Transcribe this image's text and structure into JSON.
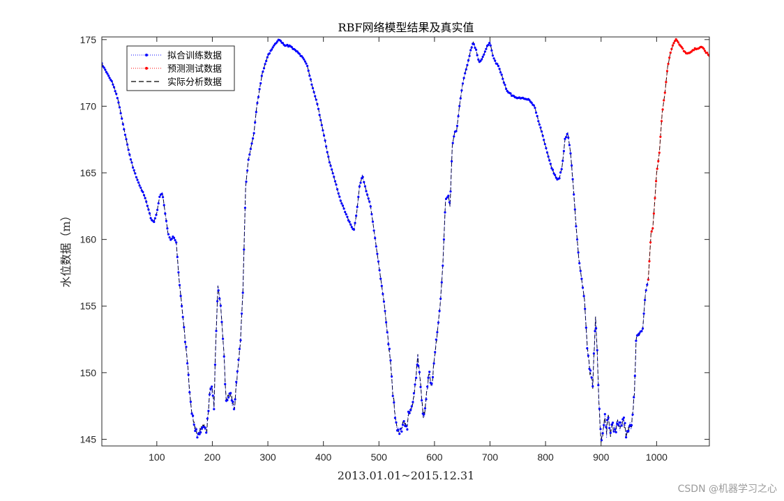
{
  "chart_data": {
    "type": "line",
    "title": "RBF网络模型结果及真实值",
    "xlabel": "2013.01.01~2015.12.31",
    "ylabel": "水位数据（m）",
    "xlim": [
      1,
      1095
    ],
    "ylim": [
      144.5,
      175.2
    ],
    "xticks": [
      100,
      200,
      300,
      400,
      500,
      600,
      700,
      800,
      900,
      1000
    ],
    "yticks": [
      145,
      150,
      155,
      160,
      165,
      170,
      175
    ],
    "grid": false,
    "legend_position": "top-left",
    "series": [
      {
        "name": "拟合训练数据",
        "color": "#0000ff",
        "style": "dotted-marker",
        "x_range": [
          1,
          985
        ]
      },
      {
        "name": "预测测试数据",
        "color": "#ff0000",
        "style": "dotted-marker",
        "x_range": [
          985,
          1095
        ]
      },
      {
        "name": "实际分析数据",
        "color": "#000000",
        "style": "dashed",
        "x_range": [
          1,
          1095
        ]
      }
    ],
    "keypoints": [
      [
        1,
        173.2
      ],
      [
        10,
        172.5
      ],
      [
        20,
        171.8
      ],
      [
        30,
        170.5
      ],
      [
        40,
        168.5
      ],
      [
        50,
        166.5
      ],
      [
        60,
        165.0
      ],
      [
        70,
        164.0
      ],
      [
        80,
        163.0
      ],
      [
        90,
        161.5
      ],
      [
        95,
        161.3
      ],
      [
        100,
        162.0
      ],
      [
        105,
        163.2
      ],
      [
        110,
        163.5
      ],
      [
        115,
        162.0
      ],
      [
        120,
        160.5
      ],
      [
        125,
        160.0
      ],
      [
        130,
        160.2
      ],
      [
        135,
        159.8
      ],
      [
        140,
        157.0
      ],
      [
        145,
        155.0
      ],
      [
        150,
        153.0
      ],
      [
        155,
        151.0
      ],
      [
        160,
        148.0
      ],
      [
        165,
        146.5
      ],
      [
        170,
        145.5
      ],
      [
        175,
        145.2
      ],
      [
        180,
        145.8
      ],
      [
        185,
        146.0
      ],
      [
        190,
        145.5
      ],
      [
        195,
        148.5
      ],
      [
        200,
        149.0
      ],
      [
        203,
        147.5
      ],
      [
        206,
        152.0
      ],
      [
        210,
        156.5
      ],
      [
        215,
        155.0
      ],
      [
        220,
        152.0
      ],
      [
        225,
        148.0
      ],
      [
        230,
        148.5
      ],
      [
        235,
        148.0
      ],
      [
        240,
        147.5
      ],
      [
        245,
        150.0
      ],
      [
        250,
        152.0
      ],
      [
        255,
        156.0
      ],
      [
        260,
        164.0
      ],
      [
        265,
        166.0
      ],
      [
        270,
        167.0
      ],
      [
        275,
        168.0
      ],
      [
        280,
        170.0
      ],
      [
        290,
        172.5
      ],
      [
        300,
        173.8
      ],
      [
        310,
        174.5
      ],
      [
        320,
        175.0
      ],
      [
        325,
        174.8
      ],
      [
        330,
        174.6
      ],
      [
        340,
        174.5
      ],
      [
        350,
        174.2
      ],
      [
        360,
        173.8
      ],
      [
        370,
        173.2
      ],
      [
        380,
        171.5
      ],
      [
        390,
        170.0
      ],
      [
        400,
        168.0
      ],
      [
        410,
        166.0
      ],
      [
        420,
        164.5
      ],
      [
        430,
        163.0
      ],
      [
        440,
        162.0
      ],
      [
        450,
        161.0
      ],
      [
        455,
        160.7
      ],
      [
        460,
        162.0
      ],
      [
        465,
        164.0
      ],
      [
        470,
        164.8
      ],
      [
        475,
        164.0
      ],
      [
        480,
        163.2
      ],
      [
        485,
        162.5
      ],
      [
        490,
        161.0
      ],
      [
        500,
        158.0
      ],
      [
        510,
        155.0
      ],
      [
        520,
        151.0
      ],
      [
        525,
        148.5
      ],
      [
        530,
        146.5
      ],
      [
        535,
        145.7
      ],
      [
        540,
        145.8
      ],
      [
        545,
        146.5
      ],
      [
        550,
        146.0
      ],
      [
        555,
        147.0
      ],
      [
        560,
        147.5
      ],
      [
        565,
        149.0
      ],
      [
        570,
        151.2
      ],
      [
        575,
        149.0
      ],
      [
        580,
        146.5
      ],
      [
        585,
        148.0
      ],
      [
        590,
        150.0
      ],
      [
        595,
        149.0
      ],
      [
        600,
        151.0
      ],
      [
        605,
        153.0
      ],
      [
        610,
        155.0
      ],
      [
        615,
        158.0
      ],
      [
        620,
        163.0
      ],
      [
        625,
        163.3
      ],
      [
        628,
        162.5
      ],
      [
        632,
        167.0
      ],
      [
        636,
        168.0
      ],
      [
        640,
        168.2
      ],
      [
        645,
        170.0
      ],
      [
        650,
        171.5
      ],
      [
        655,
        172.5
      ],
      [
        660,
        173.2
      ],
      [
        665,
        174.2
      ],
      [
        670,
        174.8
      ],
      [
        675,
        174.2
      ],
      [
        680,
        173.3
      ],
      [
        685,
        173.5
      ],
      [
        690,
        174.0
      ],
      [
        695,
        174.5
      ],
      [
        700,
        174.8
      ],
      [
        705,
        173.8
      ],
      [
        710,
        173.3
      ],
      [
        715,
        173.0
      ],
      [
        720,
        172.5
      ],
      [
        725,
        171.8
      ],
      [
        730,
        171.2
      ],
      [
        740,
        170.8
      ],
      [
        750,
        170.6
      ],
      [
        760,
        170.6
      ],
      [
        770,
        170.5
      ],
      [
        780,
        170.0
      ],
      [
        790,
        168.5
      ],
      [
        800,
        167.0
      ],
      [
        810,
        165.5
      ],
      [
        820,
        164.5
      ],
      [
        825,
        164.6
      ],
      [
        830,
        165.5
      ],
      [
        835,
        167.5
      ],
      [
        840,
        168.0
      ],
      [
        845,
        166.5
      ],
      [
        850,
        164.0
      ],
      [
        855,
        161.0
      ],
      [
        860,
        158.5
      ],
      [
        865,
        157.0
      ],
      [
        870,
        155.5
      ],
      [
        875,
        152.0
      ],
      [
        880,
        150.0
      ],
      [
        885,
        149.0
      ],
      [
        890,
        154.2
      ],
      [
        893,
        151.5
      ],
      [
        896,
        148.0
      ],
      [
        900,
        144.6
      ],
      [
        903,
        145.5
      ],
      [
        907,
        146.8
      ],
      [
        910,
        145.5
      ],
      [
        913,
        147.0
      ],
      [
        917,
        145.3
      ],
      [
        920,
        146.0
      ],
      [
        925,
        145.5
      ],
      [
        930,
        146.3
      ],
      [
        935,
        145.8
      ],
      [
        940,
        146.5
      ],
      [
        945,
        145.3
      ],
      [
        950,
        145.8
      ],
      [
        955,
        146.0
      ],
      [
        960,
        148.5
      ],
      [
        963,
        152.5
      ],
      [
        966,
        152.8
      ],
      [
        970,
        153.0
      ],
      [
        975,
        153.3
      ],
      [
        980,
        156.0
      ],
      [
        985,
        157.0
      ],
      [
        990,
        160.5
      ],
      [
        993,
        160.8
      ],
      [
        996,
        162.5
      ],
      [
        1000,
        165.0
      ],
      [
        1005,
        166.5
      ],
      [
        1010,
        169.5
      ],
      [
        1015,
        171.0
      ],
      [
        1020,
        173.0
      ],
      [
        1025,
        174.0
      ],
      [
        1030,
        174.7
      ],
      [
        1035,
        175.0
      ],
      [
        1040,
        174.7
      ],
      [
        1045,
        174.4
      ],
      [
        1050,
        174.1
      ],
      [
        1055,
        174.0
      ],
      [
        1060,
        174.0
      ],
      [
        1065,
        174.2
      ],
      [
        1070,
        174.3
      ],
      [
        1075,
        174.3
      ],
      [
        1080,
        174.5
      ],
      [
        1085,
        174.3
      ],
      [
        1090,
        174.0
      ],
      [
        1095,
        173.8
      ]
    ]
  },
  "watermark": "CSDN @机器学习之心"
}
